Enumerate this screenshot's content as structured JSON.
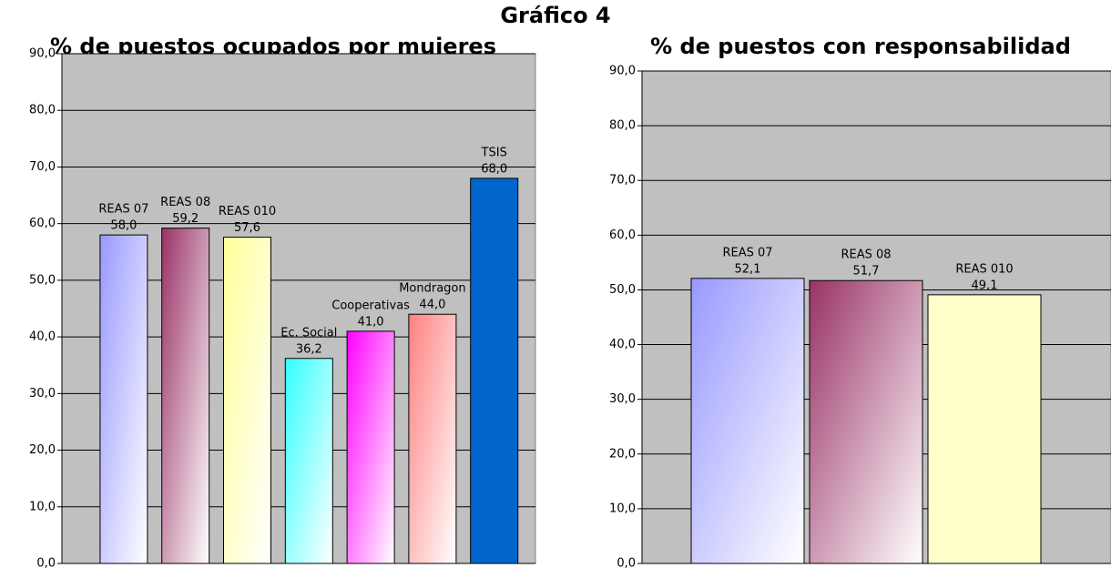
{
  "title": "Gráfico 4",
  "chart_data": [
    {
      "type": "bar",
      "title": "% de puestos ocupados por mujeres",
      "categories": [
        "REAS 07",
        "REAS 08",
        "REAS 010",
        "Ec. Social",
        "Cooperativas",
        "Mondragon",
        "TSIS"
      ],
      "values": [
        58.0,
        59.2,
        57.6,
        36.2,
        41.0,
        44.0,
        68.0
      ],
      "value_labels": [
        "58,0",
        "59,2",
        "57,6",
        "36,2",
        "41,0",
        "44,0",
        "68,0"
      ],
      "colors": [
        [
          "#9999ff",
          "#ffffff"
        ],
        [
          "#993366",
          "#ffffff"
        ],
        [
          "#ffff99",
          "#ffffff"
        ],
        [
          "#33ffff",
          "#ffffff"
        ],
        [
          "#ff00ff",
          "#ffffff"
        ],
        [
          "#ff8080",
          "#ffffff"
        ],
        [
          "#0066cc",
          "#0066cc"
        ]
      ],
      "ylim": [
        0,
        90
      ],
      "yticks": [
        {
          "value": 0,
          "label": "0,0"
        },
        {
          "value": 10,
          "label": "10,0"
        },
        {
          "value": 20,
          "label": "20,0"
        },
        {
          "value": 30,
          "label": "30,0"
        },
        {
          "value": 40,
          "label": "40,0"
        },
        {
          "value": 50,
          "label": "50,0"
        },
        {
          "value": 60,
          "label": "60,0"
        },
        {
          "value": 70,
          "label": "70,0"
        },
        {
          "value": 80,
          "label": "80,0"
        },
        {
          "value": 90,
          "label": "90,0"
        }
      ],
      "grid": true
    },
    {
      "type": "bar",
      "title": "% de puestos con responsabilidad",
      "categories": [
        "REAS 07",
        "REAS 08",
        "REAS 010"
      ],
      "values": [
        52.1,
        51.7,
        49.1
      ],
      "value_labels": [
        "52,1",
        "51,7",
        "49,1"
      ],
      "colors": [
        [
          "#9999ff",
          "#ffffff"
        ],
        [
          "#993366",
          "#ffffff"
        ],
        [
          "#ffffcc",
          "#ffffcc"
        ]
      ],
      "ylim": [
        0,
        90
      ],
      "yticks": [
        {
          "value": 0,
          "label": "0,0"
        },
        {
          "value": 10,
          "label": "10,0"
        },
        {
          "value": 20,
          "label": "20,0"
        },
        {
          "value": 30,
          "label": "30,0"
        },
        {
          "value": 40,
          "label": "40,0"
        },
        {
          "value": 50,
          "label": "50,0"
        },
        {
          "value": 60,
          "label": "60,0"
        },
        {
          "value": 70,
          "label": "70,0"
        },
        {
          "value": 80,
          "label": "80,0"
        },
        {
          "value": 90,
          "label": "90,0"
        }
      ],
      "grid": true
    }
  ]
}
